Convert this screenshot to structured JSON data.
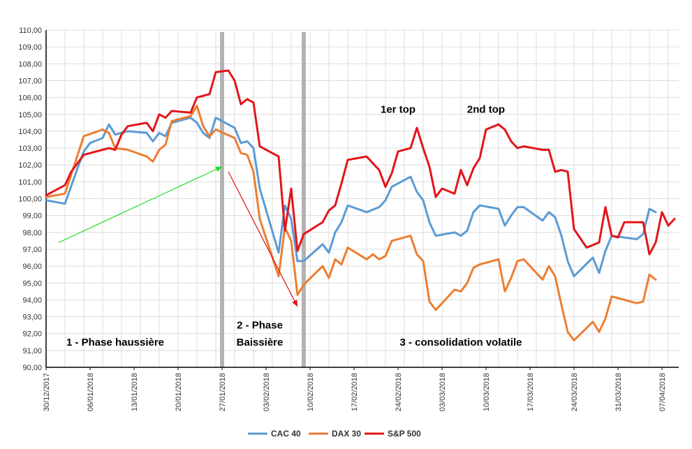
{
  "chart_data": {
    "type": "line",
    "y_ticks": [
      "90,00",
      "91,00",
      "92,00",
      "93,00",
      "94,00",
      "95,00",
      "96,00",
      "97,00",
      "98,00",
      "99,00",
      "100,00",
      "101,00",
      "102,00",
      "103,00",
      "104,00",
      "105,00",
      "106,00",
      "107,00",
      "108,00",
      "109,00",
      "110,00"
    ],
    "ylim": [
      90,
      110
    ],
    "x_start": "2017-12-30",
    "x_end": "2018-04-07",
    "x_ticks": [
      "30/12/2017",
      "06/01/2018",
      "13/01/2018",
      "20/01/2018",
      "27/01/2018",
      "03/02/2018",
      "10/02/2018",
      "17/02/2018",
      "24/02/2018",
      "03/03/2018",
      "10/03/2018",
      "17/03/2018",
      "24/03/2018",
      "31/03/2018",
      "07/04/2018"
    ],
    "grid": true,
    "legend_position": "bottom",
    "phase_markers": [
      "2018-01-27",
      "2018-02-09"
    ],
    "annotations": [
      {
        "text": "1 - Phase haussière",
        "date": "2018-01-10",
        "y": 91.5
      },
      {
        "text": "2 - Phase",
        "date": "2018-02-02",
        "y": 92.5
      },
      {
        "text": "Baissière",
        "date": "2018-02-02",
        "y": 91.5
      },
      {
        "text": "3 - consolidation volatile",
        "date": "2018-03-06",
        "y": 91.5
      },
      {
        "text": "1er top",
        "date": "2018-02-24",
        "y": 105.3
      },
      {
        "text": "2nd top",
        "date": "2018-03-10",
        "y": 105.3
      }
    ],
    "arrows": [
      {
        "color": "#22dd22",
        "from": {
          "date": "2018-01-01",
          "y": 97.4
        },
        "to": {
          "date": "2018-01-27",
          "y": 101.9
        }
      },
      {
        "color": "#dd1111",
        "from": {
          "date": "2018-01-28",
          "y": 101.6
        },
        "to": {
          "date": "2018-02-08",
          "y": 93.6
        }
      }
    ],
    "series": [
      {
        "name": "CAC 40",
        "color": "#5b9bd5",
        "points": [
          [
            "2017-12-30",
            99.9
          ],
          [
            "2018-01-02",
            99.7
          ],
          [
            "2018-01-04",
            101.8
          ],
          [
            "2018-01-05",
            102.8
          ],
          [
            "2018-01-06",
            103.3
          ],
          [
            "2018-01-08",
            103.6
          ],
          [
            "2018-01-09",
            104.4
          ],
          [
            "2018-01-10",
            103.8
          ],
          [
            "2018-01-12",
            104.0
          ],
          [
            "2018-01-15",
            103.9
          ],
          [
            "2018-01-16",
            103.4
          ],
          [
            "2018-01-17",
            103.9
          ],
          [
            "2018-01-18",
            103.7
          ],
          [
            "2018-01-19",
            104.5
          ],
          [
            "2018-01-22",
            104.8
          ],
          [
            "2018-01-23",
            104.5
          ],
          [
            "2018-01-24",
            103.9
          ],
          [
            "2018-01-25",
            103.6
          ],
          [
            "2018-01-26",
            104.8
          ],
          [
            "2018-01-27",
            104.6
          ],
          [
            "2018-01-29",
            104.2
          ],
          [
            "2018-01-30",
            103.3
          ],
          [
            "2018-01-31",
            103.4
          ],
          [
            "2018-02-01",
            103.0
          ],
          [
            "2018-02-02",
            100.6
          ],
          [
            "2018-02-05",
            96.8
          ],
          [
            "2018-02-06",
            99.6
          ],
          [
            "2018-02-07",
            98.8
          ],
          [
            "2018-02-08",
            96.3
          ],
          [
            "2018-02-09",
            96.3
          ],
          [
            "2018-02-12",
            97.3
          ],
          [
            "2018-02-13",
            96.8
          ],
          [
            "2018-02-14",
            98.0
          ],
          [
            "2018-02-15",
            98.6
          ],
          [
            "2018-02-16",
            99.6
          ],
          [
            "2018-02-19",
            99.2
          ],
          [
            "2018-02-21",
            99.5
          ],
          [
            "2018-02-22",
            99.9
          ],
          [
            "2018-02-23",
            100.7
          ],
          [
            "2018-02-26",
            101.3
          ],
          [
            "2018-02-27",
            100.4
          ],
          [
            "2018-02-28",
            99.9
          ],
          [
            "2018-03-01",
            98.6
          ],
          [
            "2018-03-02",
            97.8
          ],
          [
            "2018-03-05",
            98.0
          ],
          [
            "2018-03-06",
            97.8
          ],
          [
            "2018-03-07",
            98.1
          ],
          [
            "2018-03-08",
            99.2
          ],
          [
            "2018-03-09",
            99.6
          ],
          [
            "2018-03-12",
            99.4
          ],
          [
            "2018-03-13",
            98.4
          ],
          [
            "2018-03-14",
            99.0
          ],
          [
            "2018-03-15",
            99.5
          ],
          [
            "2018-03-16",
            99.5
          ],
          [
            "2018-03-19",
            98.7
          ],
          [
            "2018-03-20",
            99.2
          ],
          [
            "2018-03-21",
            98.9
          ],
          [
            "2018-03-22",
            97.8
          ],
          [
            "2018-03-23",
            96.3
          ],
          [
            "2018-03-24",
            95.4
          ],
          [
            "2018-03-27",
            96.5
          ],
          [
            "2018-03-28",
            95.6
          ],
          [
            "2018-03-29",
            96.9
          ],
          [
            "2018-03-30",
            97.8
          ],
          [
            "2018-04-03",
            97.6
          ],
          [
            "2018-04-04",
            97.9
          ],
          [
            "2018-04-05",
            99.4
          ],
          [
            "2018-04-06",
            99.2
          ]
        ]
      },
      {
        "name": "DAX 30",
        "color": "#ed7d31",
        "points": [
          [
            "2017-12-30",
            100.1
          ],
          [
            "2018-01-02",
            100.3
          ],
          [
            "2018-01-05",
            103.7
          ],
          [
            "2018-01-08",
            104.1
          ],
          [
            "2018-01-09",
            103.9
          ],
          [
            "2018-01-10",
            103.0
          ],
          [
            "2018-01-12",
            102.9
          ],
          [
            "2018-01-15",
            102.5
          ],
          [
            "2018-01-16",
            102.2
          ],
          [
            "2018-01-17",
            102.9
          ],
          [
            "2018-01-18",
            103.2
          ],
          [
            "2018-01-19",
            104.6
          ],
          [
            "2018-01-22",
            104.9
          ],
          [
            "2018-01-23",
            105.5
          ],
          [
            "2018-01-24",
            104.3
          ],
          [
            "2018-01-25",
            103.7
          ],
          [
            "2018-01-26",
            104.1
          ],
          [
            "2018-01-29",
            103.6
          ],
          [
            "2018-01-30",
            102.7
          ],
          [
            "2018-01-31",
            102.6
          ],
          [
            "2018-02-01",
            101.6
          ],
          [
            "2018-02-02",
            98.8
          ],
          [
            "2018-02-05",
            95.4
          ],
          [
            "2018-02-06",
            98.3
          ],
          [
            "2018-02-07",
            97.5
          ],
          [
            "2018-02-08",
            94.3
          ],
          [
            "2018-02-09",
            94.9
          ],
          [
            "2018-02-12",
            96.0
          ],
          [
            "2018-02-13",
            95.3
          ],
          [
            "2018-02-14",
            96.4
          ],
          [
            "2018-02-15",
            96.1
          ],
          [
            "2018-02-16",
            97.1
          ],
          [
            "2018-02-19",
            96.4
          ],
          [
            "2018-02-20",
            96.7
          ],
          [
            "2018-02-21",
            96.4
          ],
          [
            "2018-02-22",
            96.6
          ],
          [
            "2018-02-23",
            97.5
          ],
          [
            "2018-02-26",
            97.8
          ],
          [
            "2018-02-27",
            96.7
          ],
          [
            "2018-02-28",
            96.3
          ],
          [
            "2018-03-01",
            93.9
          ],
          [
            "2018-03-02",
            93.4
          ],
          [
            "2018-03-05",
            94.6
          ],
          [
            "2018-03-06",
            94.5
          ],
          [
            "2018-03-07",
            95.0
          ],
          [
            "2018-03-08",
            95.9
          ],
          [
            "2018-03-09",
            96.1
          ],
          [
            "2018-03-12",
            96.4
          ],
          [
            "2018-03-13",
            94.5
          ],
          [
            "2018-03-14",
            95.3
          ],
          [
            "2018-03-15",
            96.3
          ],
          [
            "2018-03-16",
            96.4
          ],
          [
            "2018-03-19",
            95.2
          ],
          [
            "2018-03-20",
            96.0
          ],
          [
            "2018-03-21",
            95.4
          ],
          [
            "2018-03-22",
            93.7
          ],
          [
            "2018-03-23",
            92.1
          ],
          [
            "2018-03-24",
            91.6
          ],
          [
            "2018-03-27",
            92.7
          ],
          [
            "2018-03-28",
            92.1
          ],
          [
            "2018-03-29",
            92.9
          ],
          [
            "2018-03-30",
            94.2
          ],
          [
            "2018-04-03",
            93.8
          ],
          [
            "2018-04-04",
            93.9
          ],
          [
            "2018-04-05",
            95.5
          ],
          [
            "2018-04-06",
            95.2
          ]
        ]
      },
      {
        "name": "S&P 500",
        "color": "#e3151a",
        "points": [
          [
            "2017-12-30",
            100.2
          ],
          [
            "2018-01-02",
            100.8
          ],
          [
            "2018-01-03",
            101.6
          ],
          [
            "2018-01-05",
            102.6
          ],
          [
            "2018-01-08",
            102.9
          ],
          [
            "2018-01-09",
            103.0
          ],
          [
            "2018-01-10",
            102.9
          ],
          [
            "2018-01-11",
            103.8
          ],
          [
            "2018-01-12",
            104.3
          ],
          [
            "2018-01-15",
            104.5
          ],
          [
            "2018-01-16",
            104.0
          ],
          [
            "2018-01-17",
            105.0
          ],
          [
            "2018-01-18",
            104.8
          ],
          [
            "2018-01-19",
            105.2
          ],
          [
            "2018-01-22",
            105.1
          ],
          [
            "2018-01-23",
            106.0
          ],
          [
            "2018-01-24",
            106.1
          ],
          [
            "2018-01-25",
            106.2
          ],
          [
            "2018-01-26",
            107.5
          ],
          [
            "2018-01-28",
            107.6
          ],
          [
            "2018-01-29",
            107.0
          ],
          [
            "2018-01-30",
            105.6
          ],
          [
            "2018-01-31",
            105.9
          ],
          [
            "2018-02-01",
            105.7
          ],
          [
            "2018-02-02",
            103.1
          ],
          [
            "2018-02-05",
            102.5
          ],
          [
            "2018-02-06",
            98.1
          ],
          [
            "2018-02-07",
            100.6
          ],
          [
            "2018-02-08",
            96.9
          ],
          [
            "2018-02-09",
            97.9
          ],
          [
            "2018-02-12",
            98.6
          ],
          [
            "2018-02-13",
            99.3
          ],
          [
            "2018-02-14",
            99.6
          ],
          [
            "2018-02-15",
            100.9
          ],
          [
            "2018-02-16",
            102.3
          ],
          [
            "2018-02-19",
            102.5
          ],
          [
            "2018-02-20",
            102.1
          ],
          [
            "2018-02-21",
            101.7
          ],
          [
            "2018-02-22",
            100.7
          ],
          [
            "2018-02-23",
            101.5
          ],
          [
            "2018-02-24",
            102.8
          ],
          [
            "2018-02-26",
            103.0
          ],
          [
            "2018-02-27",
            104.2
          ],
          [
            "2018-02-28",
            103.0
          ],
          [
            "2018-03-01",
            101.9
          ],
          [
            "2018-03-02",
            100.1
          ],
          [
            "2018-03-03",
            100.6
          ],
          [
            "2018-03-05",
            100.3
          ],
          [
            "2018-03-06",
            101.7
          ],
          [
            "2018-03-07",
            100.8
          ],
          [
            "2018-03-08",
            101.8
          ],
          [
            "2018-03-09",
            102.4
          ],
          [
            "2018-03-10",
            104.1
          ],
          [
            "2018-03-12",
            104.4
          ],
          [
            "2018-03-13",
            104.1
          ],
          [
            "2018-03-14",
            103.4
          ],
          [
            "2018-03-15",
            103.0
          ],
          [
            "2018-03-16",
            103.1
          ],
          [
            "2018-03-19",
            102.9
          ],
          [
            "2018-03-20",
            102.9
          ],
          [
            "2018-03-21",
            101.6
          ],
          [
            "2018-03-22",
            101.7
          ],
          [
            "2018-03-23",
            101.6
          ],
          [
            "2018-03-24",
            98.2
          ],
          [
            "2018-03-26",
            97.1
          ],
          [
            "2018-03-28",
            97.4
          ],
          [
            "2018-03-29",
            99.5
          ],
          [
            "2018-03-30",
            97.8
          ],
          [
            "2018-03-31",
            97.7
          ],
          [
            "2018-04-01",
            98.6
          ],
          [
            "2018-04-03",
            98.6
          ],
          [
            "2018-04-04",
            98.6
          ],
          [
            "2018-04-05",
            96.7
          ],
          [
            "2018-04-06",
            97.4
          ],
          [
            "2018-04-07",
            99.2
          ],
          [
            "2018-04-08",
            98.4
          ],
          [
            "2018-04-09",
            98.8
          ]
        ]
      }
    ]
  }
}
